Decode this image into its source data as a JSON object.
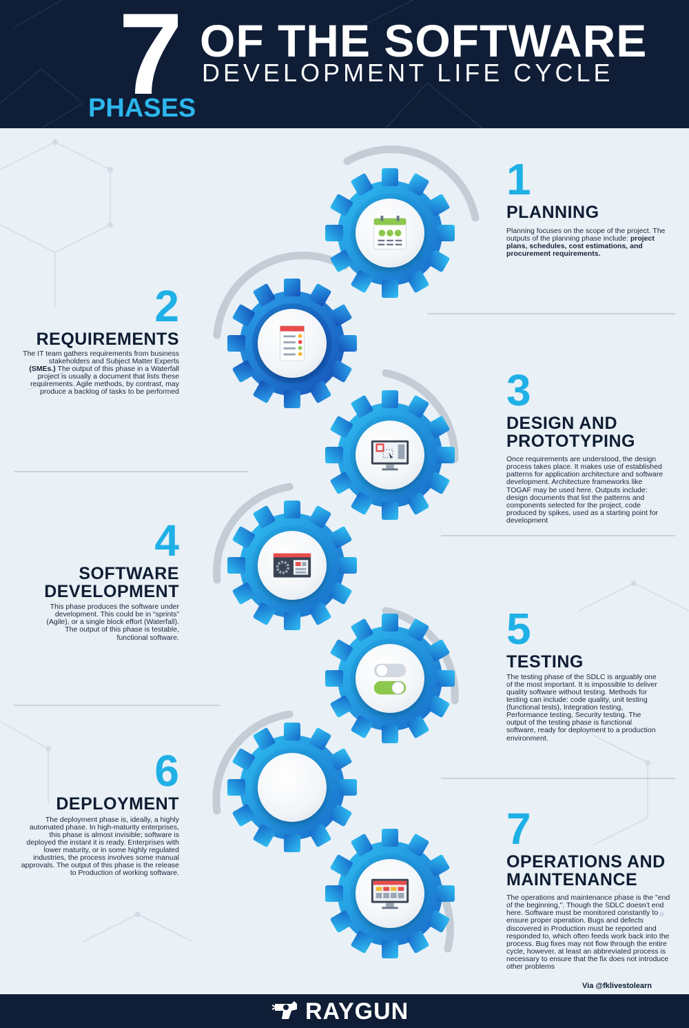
{
  "header": {
    "number": "7",
    "title_line1": "OF THE SOFTWARE",
    "title_line2": "DEVELOPMENT LIFE CYCLE",
    "title_line3": "PHASES"
  },
  "phases": [
    {
      "number": "1",
      "title": "PLANNING",
      "text": "Planning focuses on the scope of the project. The outputs of the planning phase include:",
      "text_bold": "project plans, schedules, cost estimations, and procurement requirements.",
      "icon": "calendar-checklist-icon"
    },
    {
      "number": "2",
      "title": "REQUIREMENTS",
      "text": "The IT team gathers requirements from business stakeholders and Subject Matter Experts",
      "text_bold": "(SMEs.)",
      "text_after": "The output of this phase in a Waterfall project is usually a document that lists these requirements. Agile methods, by contrast, may produce a backlog of tasks to be performed",
      "icon": "requirements-document-icon"
    },
    {
      "number": "3",
      "title_line1": "DESIGN AND",
      "title_line2": "PROTOTYPING",
      "text": "Once requirements are understood, the design process takes place. It makes use of established patterns for application architecture and software development. Architecture frameworks like TOGAF may be used here. Outputs include: design documents that list the patterns and components selected for the project, code produced by spikes, used as a starting point for development",
      "icon": "design-monitor-icon"
    },
    {
      "number": "4",
      "title_line1": "SOFTWARE",
      "title_line2": "DEVELOPMENT",
      "text": "This phase produces the software under development. This could be in “sprints” (Agile), or a single block effort (Waterfall). The output of this phase is testable, functional software.",
      "icon": "development-window-icon"
    },
    {
      "number": "5",
      "title": "TESTING",
      "text": "The testing phase of the SDLC is arguably one of the most important. It is impossible to deliver quality software without testing. Methods for testing can include: code quality, unit testing (functional tests), Integration testing, Performance testing, Security testing. The output of the testing phase is functional software, ready for deployment to a production environment.",
      "icon": "toggle-switches-icon"
    },
    {
      "number": "6",
      "title": "DEPLOYMENT",
      "text": "The deployment phase is, ideally, a highly automated phase. In high-maturity enterprises, this phase is almost invisible; software is deployed the instant it is ready. Enterprises with lower maturity, or in some highly regulated industries, the process involves some manual approvals. The output of this phase is the release to Production of working software.",
      "icon": ""
    },
    {
      "number": "7",
      "title_line1": "OPERATIONS AND",
      "title_line2": "MAINTENANCE",
      "text": "The operations and maintenance phase is the \"end of the beginning,\". Though the SDLC doesn’t end here. Software must be monitored constantly to ensure proper operation. Bugs and defects discovered in Production must be reported and responded to, which often feeds work back into the process. Bug fixes may not flow through the entire cycle, however, at least an abbreviated process is necessary to ensure that the fix does not introduce other problems",
      "icon": "dashboard-monitor-icon"
    }
  ],
  "credit": "Via @fklivestolearn",
  "footer": {
    "brand": "RAYGUN"
  },
  "colors": {
    "navy": "#0f1d36",
    "accent": "#1fb0e6",
    "gear_blue_light": "#2ab4ee",
    "gear_blue_dark": "#1769c9",
    "background": "#e9f0f6"
  }
}
